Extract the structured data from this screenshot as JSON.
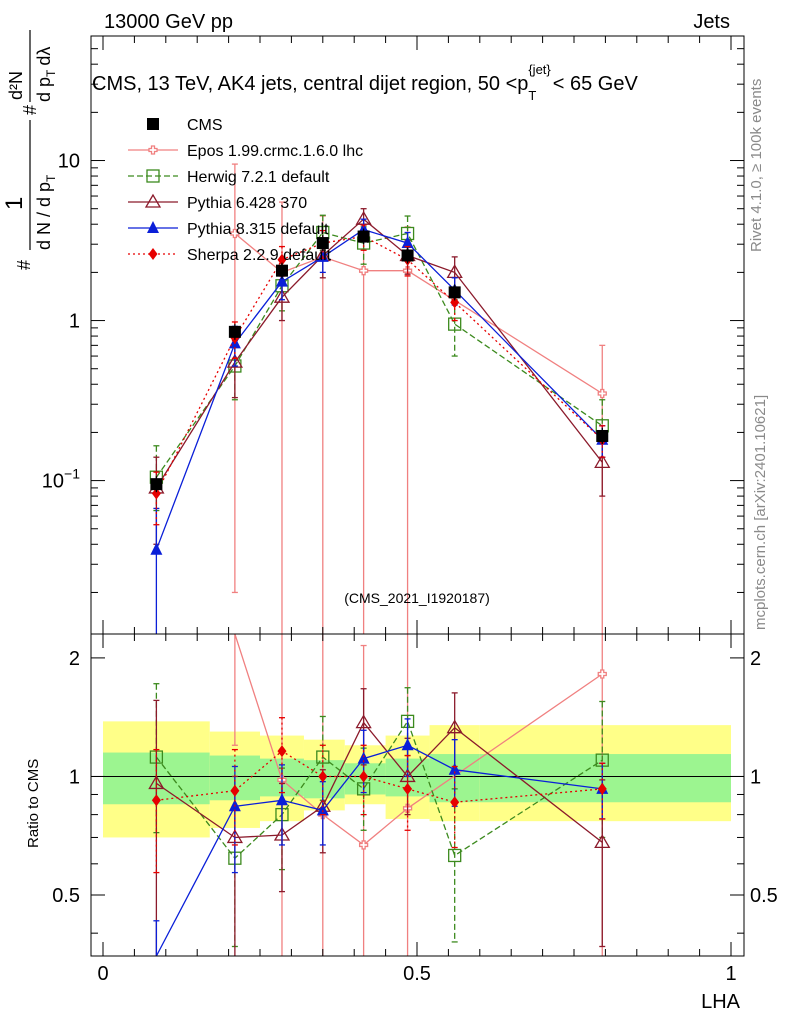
{
  "header": {
    "left": "13000 GeV pp",
    "right": "Jets",
    "title_main": "CMS, 13 TeV, AK4 jets, central dijet region, 50 <p",
    "title_sub": "T",
    "title_sup": "{jet}",
    "title_end": "< 65 GeV"
  },
  "side_labels": {
    "rivet": "Rivet 4.1.0, ≥ 100k events",
    "mcplots": "mcplots.cern.ch [arXiv:2401.10621]"
  },
  "watermark": "(CMS_2021_I1920187)",
  "chart_data": {
    "type": "line",
    "title": "CMS, 13 TeV, AK4 jets, central dijet region, 50 <p_T^{jet}< 65 GeV",
    "xlabel": "LHA",
    "ylabel": "1/N dN/dp_T ... d²N/(dp_T dλ)",
    "ylabel_parts": {
      "hash": "#",
      "one": "1",
      "dN": "d N / d p",
      "T": "T",
      "d2N": "d²N",
      "dpT": "d p",
      "dl": "dλ"
    },
    "ratio_ylabel": "Ratio to CMS",
    "xlim": [
      0,
      1
    ],
    "ylim_main": [
      0.011,
      60
    ],
    "yscale_main": "log",
    "ylim_ratio": [
      0.35,
      2.3
    ],
    "yscale_ratio": "log",
    "x_ticks": [
      0,
      0.5,
      1
    ],
    "x_tick_labels": [
      "0",
      "0.5",
      "1"
    ],
    "y_ticks_main": [
      0.1,
      1,
      10
    ],
    "y_tick_labels_main": [
      "10−1",
      "1",
      "10"
    ],
    "y_ticks_ratio": [
      0.5,
      1,
      2
    ],
    "y_tick_labels_ratio": [
      "0.5",
      "1",
      "2"
    ],
    "legend_position": "top-left",
    "data": {
      "name": "CMS",
      "color": "#000000",
      "x": [
        0.085,
        0.21,
        0.285,
        0.35,
        0.415,
        0.485,
        0.56,
        0.795
      ],
      "y": [
        0.095,
        0.85,
        2.05,
        3.05,
        3.35,
        2.55,
        1.5,
        0.19
      ],
      "bands": [
        {
          "x0": 0.0,
          "x1": 0.17,
          "stat_lo": 0.85,
          "stat_hi": 1.15,
          "tot_lo": 0.7,
          "tot_hi": 1.38
        },
        {
          "x0": 0.17,
          "x1": 0.25,
          "stat_lo": 0.87,
          "stat_hi": 1.13,
          "tot_lo": 0.74,
          "tot_hi": 1.3
        },
        {
          "x0": 0.25,
          "x1": 0.32,
          "stat_lo": 0.89,
          "stat_hi": 1.11,
          "tot_lo": 0.77,
          "tot_hi": 1.27
        },
        {
          "x0": 0.32,
          "x1": 0.385,
          "stat_lo": 0.88,
          "stat_hi": 1.1,
          "tot_lo": 0.82,
          "tot_hi": 1.24
        },
        {
          "x0": 0.385,
          "x1": 0.45,
          "stat_lo": 0.9,
          "stat_hi": 1.08,
          "tot_lo": 0.85,
          "tot_hi": 1.2
        },
        {
          "x0": 0.45,
          "x1": 0.52,
          "stat_lo": 0.89,
          "stat_hi": 1.11,
          "tot_lo": 0.78,
          "tot_hi": 1.27
        },
        {
          "x0": 0.52,
          "x1": 0.6,
          "stat_lo": 0.86,
          "stat_hi": 1.14,
          "tot_lo": 0.77,
          "tot_hi": 1.35
        },
        {
          "x0": 0.6,
          "x1": 1.0,
          "stat_lo": 0.86,
          "stat_hi": 1.14,
          "tot_lo": 0.77,
          "tot_hi": 1.35
        }
      ]
    },
    "series": [
      {
        "name": "Epos 1.99.crmc.1.6.0 lhc",
        "color": "#f08080",
        "dash": "",
        "marker": "cross",
        "x": [
          0.21,
          0.285,
          0.35,
          0.415,
          0.485,
          0.795
        ],
        "y": [
          3.5,
          2.0,
          2.5,
          2.05,
          2.05,
          0.35
        ],
        "err_lo": [
          3.48,
          1.99,
          2.49,
          2.04,
          2.04,
          0.349
        ],
        "err_hi": [
          6.0,
          3.5,
          2.0,
          1.6,
          1.8,
          0.35
        ],
        "ratio": [
          4.2,
          0.98,
          0.8,
          0.67,
          0.83,
          1.82
        ],
        "ratio_lo": [
          3.0,
          0.97,
          0.79,
          0.66,
          0.82,
          1.81
        ],
        "ratio_hi": [
          1.0,
          2.0,
          1.62,
          1.48,
          1.66,
          1.5
        ]
      },
      {
        "name": "Herwig 7.2.1 default",
        "color": "#3c8a1e",
        "dash": "6,3",
        "marker": "square-open",
        "x": [
          0.085,
          0.21,
          0.285,
          0.35,
          0.415,
          0.485,
          0.56,
          0.795
        ],
        "y": [
          0.105,
          0.52,
          1.65,
          3.55,
          3.05,
          3.5,
          0.95,
          0.22
        ],
        "err_lo": [
          0.04,
          0.2,
          0.5,
          0.8,
          0.8,
          0.9,
          0.35,
          0.08
        ],
        "err_hi": [
          0.06,
          0.25,
          0.5,
          1.0,
          0.8,
          1.0,
          0.4,
          0.1
        ],
        "ratio": [
          1.12,
          0.62,
          0.8,
          1.12,
          0.93,
          1.38,
          0.63,
          1.1
        ],
        "ratio_lo": [
          0.4,
          0.25,
          0.22,
          0.25,
          0.2,
          0.25,
          0.25,
          0.4
        ],
        "ratio_hi": [
          0.6,
          0.3,
          0.25,
          0.3,
          0.25,
          0.3,
          0.3,
          0.45
        ]
      },
      {
        "name": "Pythia 6.428 370",
        "color": "#8b1a2b",
        "dash": "",
        "marker": "triangle-open",
        "x": [
          0.085,
          0.21,
          0.285,
          0.35,
          0.415,
          0.485,
          0.56,
          0.795
        ],
        "y": [
          0.09,
          0.55,
          1.4,
          2.55,
          4.3,
          2.55,
          2.0,
          0.13
        ],
        "err_lo": [
          0.05,
          0.22,
          0.4,
          0.7,
          0.7,
          0.6,
          0.5,
          0.05
        ],
        "err_hi": [
          0.05,
          0.2,
          0.4,
          0.6,
          0.7,
          0.6,
          0.5,
          0.05
        ],
        "ratio": [
          0.96,
          0.7,
          0.71,
          0.84,
          1.37,
          1.0,
          1.33,
          0.68
        ],
        "ratio_lo": [
          0.63,
          0.37,
          0.2,
          0.2,
          0.3,
          0.2,
          0.3,
          0.31
        ],
        "ratio_hi": [
          0.6,
          0.3,
          0.25,
          0.2,
          0.3,
          0.25,
          0.3,
          0.3
        ]
      },
      {
        "name": "Pythia 8.315 default",
        "color": "#0a1fd8",
        "dash": "",
        "marker": "triangle-filled",
        "x": [
          0.085,
          0.21,
          0.285,
          0.35,
          0.415,
          0.485,
          0.56,
          0.795
        ],
        "y": [
          0.037,
          0.72,
          1.75,
          2.5,
          3.7,
          3.05,
          1.55,
          0.18
        ],
        "err_lo": [
          0.03,
          0.2,
          0.4,
          0.5,
          0.6,
          0.5,
          0.3,
          0.04
        ],
        "err_hi": [
          0.03,
          0.2,
          0.4,
          0.4,
          0.6,
          0.5,
          0.3,
          0.04
        ],
        "ratio": [
          0.33,
          0.84,
          0.87,
          0.82,
          1.11,
          1.2,
          1.04,
          0.93
        ],
        "ratio_lo": [
          0.1,
          0.27,
          0.2,
          0.15,
          0.2,
          0.2,
          0.2,
          0.15
        ],
        "ratio_hi": [
          0.1,
          0.22,
          0.2,
          0.15,
          0.2,
          0.2,
          0.2,
          0.15
        ]
      },
      {
        "name": "Sherpa 2.2.9 default",
        "color": "#e60000",
        "dash": "2,3",
        "marker": "diamond",
        "x": [
          0.085,
          0.21,
          0.285,
          0.35,
          0.415,
          0.485,
          0.56,
          0.795
        ],
        "y": [
          0.083,
          0.78,
          2.4,
          3.05,
          3.35,
          2.4,
          1.3,
          0.18
        ],
        "err_lo": [
          0.03,
          0.2,
          0.5,
          0.6,
          0.6,
          0.5,
          0.3,
          0.04
        ],
        "err_hi": [
          0.03,
          0.2,
          0.5,
          0.6,
          0.6,
          0.5,
          0.3,
          0.04
        ],
        "ratio": [
          0.87,
          0.92,
          1.16,
          1.0,
          1.0,
          0.93,
          0.86,
          0.93
        ],
        "ratio_lo": [
          0.3,
          0.25,
          0.25,
          0.2,
          0.2,
          0.2,
          0.2,
          0.15
        ],
        "ratio_hi": [
          0.3,
          0.25,
          0.25,
          0.2,
          0.2,
          0.2,
          0.2,
          0.15
        ]
      }
    ]
  }
}
